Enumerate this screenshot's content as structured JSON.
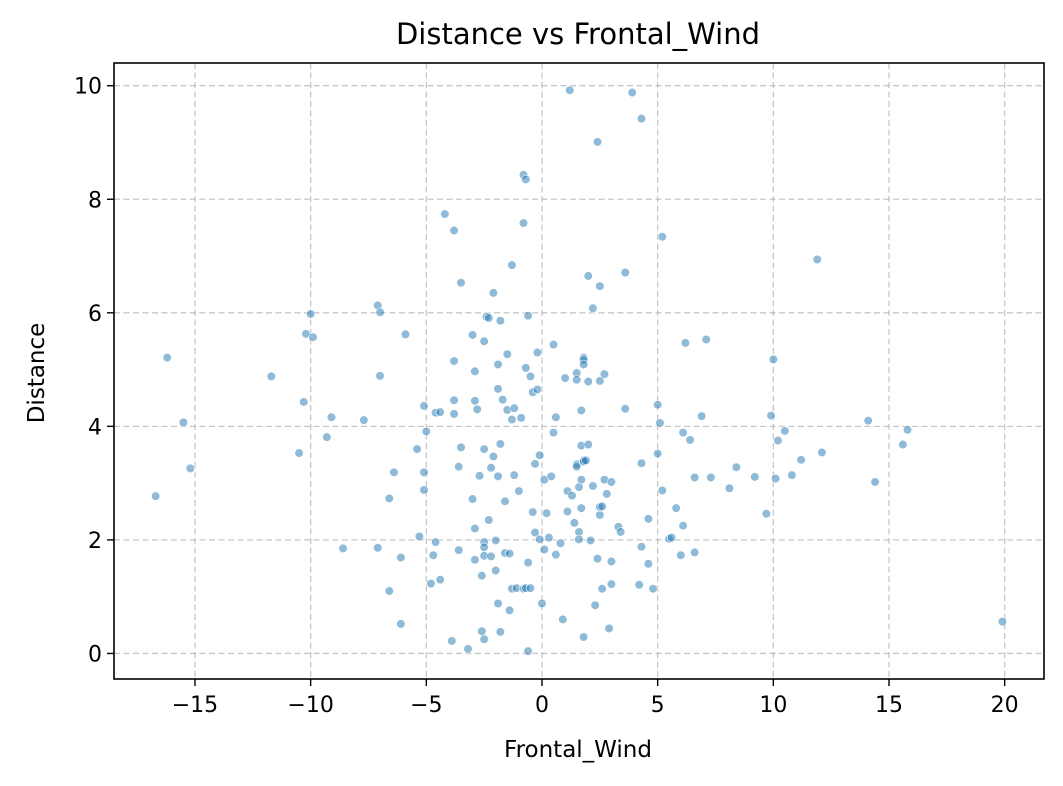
{
  "chart_data": {
    "type": "scatter",
    "title": "Distance vs Frontal_Wind",
    "xlabel": "Frontal_Wind",
    "ylabel": "Distance",
    "xlim": [
      -18.5,
      21.7
    ],
    "ylim": [
      -0.45,
      10.4
    ],
    "xticks": [
      -15,
      -10,
      -5,
      0,
      5,
      10,
      15,
      20
    ],
    "xtick_labels": [
      "−15",
      "−10",
      "−5",
      "0",
      "5",
      "10",
      "15",
      "20"
    ],
    "yticks": [
      0,
      2,
      4,
      6,
      8,
      10
    ],
    "ytick_labels": [
      "0",
      "2",
      "4",
      "6",
      "8",
      "10"
    ],
    "grid": true,
    "marker_color": "#1f77b4",
    "points": [
      [
        -16.7,
        2.77
      ],
      [
        -16.2,
        5.21
      ],
      [
        -15.5,
        4.07
      ],
      [
        -15.2,
        3.26
      ],
      [
        -11.7,
        4.88
      ],
      [
        -10.5,
        3.53
      ],
      [
        -10.3,
        4.43
      ],
      [
        -10.2,
        5.63
      ],
      [
        -10.0,
        5.98
      ],
      [
        -9.9,
        5.57
      ],
      [
        -9.3,
        3.81
      ],
      [
        -9.1,
        4.16
      ],
      [
        -8.6,
        1.85
      ],
      [
        -7.7,
        4.11
      ],
      [
        -7.1,
        6.13
      ],
      [
        -7.0,
        6.01
      ],
      [
        -7.0,
        4.89
      ],
      [
        -7.1,
        1.86
      ],
      [
        -6.6,
        2.73
      ],
      [
        -6.6,
        1.1
      ],
      [
        -6.4,
        3.19
      ],
      [
        -6.1,
        1.69
      ],
      [
        -6.1,
        0.52
      ],
      [
        -5.9,
        5.62
      ],
      [
        -5.4,
        3.6
      ],
      [
        -5.3,
        2.06
      ],
      [
        -5.1,
        4.36
      ],
      [
        -5.0,
        3.91
      ],
      [
        -5.1,
        3.19
      ],
      [
        -5.1,
        2.88
      ],
      [
        -4.8,
        1.23
      ],
      [
        -4.7,
        1.73
      ],
      [
        -4.6,
        4.24
      ],
      [
        -4.6,
        1.96
      ],
      [
        -4.4,
        4.25
      ],
      [
        -4.4,
        1.3
      ],
      [
        -4.2,
        7.74
      ],
      [
        -3.9,
        0.22
      ],
      [
        -3.8,
        7.45
      ],
      [
        -3.8,
        5.15
      ],
      [
        -3.8,
        4.46
      ],
      [
        -3.8,
        4.22
      ],
      [
        -3.6,
        3.29
      ],
      [
        -3.6,
        1.82
      ],
      [
        -3.5,
        6.53
      ],
      [
        -3.5,
        3.63
      ],
      [
        -3.2,
        0.08
      ],
      [
        -3.0,
        5.61
      ],
      [
        -3.0,
        2.72
      ],
      [
        -2.9,
        4.97
      ],
      [
        -2.9,
        4.45
      ],
      [
        -2.9,
        2.2
      ],
      [
        -2.9,
        1.65
      ],
      [
        -2.8,
        4.3
      ],
      [
        -2.7,
        3.13
      ],
      [
        -2.6,
        1.37
      ],
      [
        -2.6,
        0.39
      ],
      [
        -2.5,
        5.5
      ],
      [
        -2.5,
        3.6
      ],
      [
        -2.5,
        1.96
      ],
      [
        -2.5,
        1.87
      ],
      [
        -2.5,
        1.72
      ],
      [
        -2.5,
        0.25
      ],
      [
        -2.4,
        5.93
      ],
      [
        -2.3,
        5.91
      ],
      [
        -2.3,
        2.35
      ],
      [
        -2.2,
        3.27
      ],
      [
        -2.2,
        1.71
      ],
      [
        -2.1,
        6.35
      ],
      [
        -2.1,
        3.47
      ],
      [
        -2.0,
        1.99
      ],
      [
        -2.0,
        1.46
      ],
      [
        -1.9,
        5.09
      ],
      [
        -1.9,
        4.66
      ],
      [
        -1.9,
        3.12
      ],
      [
        -1.9,
        0.88
      ],
      [
        -1.8,
        5.86
      ],
      [
        -1.8,
        3.69
      ],
      [
        -1.8,
        0.38
      ],
      [
        -1.7,
        4.47
      ],
      [
        -1.6,
        2.68
      ],
      [
        -1.6,
        1.77
      ],
      [
        -1.5,
        5.27
      ],
      [
        -1.5,
        4.29
      ],
      [
        -1.4,
        1.76
      ],
      [
        -1.4,
        0.76
      ],
      [
        -1.3,
        6.84
      ],
      [
        -1.3,
        4.12
      ],
      [
        -1.3,
        1.14
      ],
      [
        -1.2,
        4.32
      ],
      [
        -1.2,
        3.14
      ],
      [
        -1.1,
        1.15
      ],
      [
        -1.0,
        2.86
      ],
      [
        -0.9,
        4.15
      ],
      [
        -0.8,
        8.43
      ],
      [
        -0.8,
        7.58
      ],
      [
        -0.8,
        1.14
      ],
      [
        -0.7,
        8.35
      ],
      [
        -0.7,
        5.03
      ],
      [
        -0.7,
        1.15
      ],
      [
        -0.6,
        5.95
      ],
      [
        -0.6,
        1.6
      ],
      [
        -0.6,
        0.04
      ],
      [
        -0.5,
        4.88
      ],
      [
        -0.5,
        1.15
      ],
      [
        -0.4,
        4.6
      ],
      [
        -0.4,
        2.49
      ],
      [
        -0.3,
        3.34
      ],
      [
        -0.3,
        2.13
      ],
      [
        -0.2,
        5.3
      ],
      [
        -0.2,
        4.65
      ],
      [
        -0.1,
        3.49
      ],
      [
        -0.1,
        2.01
      ],
      [
        0.0,
        0.88
      ],
      [
        0.1,
        1.83
      ],
      [
        0.1,
        3.06
      ],
      [
        0.2,
        2.47
      ],
      [
        0.3,
        2.04
      ],
      [
        0.4,
        3.12
      ],
      [
        0.5,
        5.44
      ],
      [
        0.5,
        3.89
      ],
      [
        0.6,
        4.16
      ],
      [
        0.6,
        1.74
      ],
      [
        0.8,
        1.94
      ],
      [
        0.9,
        0.6
      ],
      [
        1.0,
        4.85
      ],
      [
        1.1,
        2.5
      ],
      [
        1.1,
        2.86
      ],
      [
        1.2,
        9.92
      ],
      [
        1.3,
        2.78
      ],
      [
        1.4,
        2.3
      ],
      [
        1.5,
        4.94
      ],
      [
        1.5,
        3.33
      ],
      [
        1.5,
        3.29
      ],
      [
        1.5,
        4.82
      ],
      [
        1.6,
        2.93
      ],
      [
        1.6,
        2.14
      ],
      [
        1.6,
        2.01
      ],
      [
        1.7,
        4.28
      ],
      [
        1.7,
        3.06
      ],
      [
        1.7,
        2.56
      ],
      [
        1.7,
        3.66
      ],
      [
        1.8,
        5.21
      ],
      [
        1.8,
        5.17
      ],
      [
        1.8,
        5.09
      ],
      [
        1.8,
        3.4
      ],
      [
        1.8,
        3.38
      ],
      [
        1.8,
        0.29
      ],
      [
        1.9,
        3.4
      ],
      [
        2.0,
        6.65
      ],
      [
        2.0,
        3.68
      ],
      [
        2.0,
        4.79
      ],
      [
        2.1,
        1.99
      ],
      [
        2.2,
        6.08
      ],
      [
        2.2,
        2.95
      ],
      [
        2.3,
        0.85
      ],
      [
        2.4,
        9.01
      ],
      [
        2.4,
        1.67
      ],
      [
        2.5,
        6.47
      ],
      [
        2.5,
        4.8
      ],
      [
        2.5,
        2.44
      ],
      [
        2.5,
        2.58
      ],
      [
        2.6,
        2.59
      ],
      [
        2.6,
        1.14
      ],
      [
        2.7,
        4.92
      ],
      [
        2.7,
        3.06
      ],
      [
        2.8,
        2.81
      ],
      [
        2.9,
        0.44
      ],
      [
        3.0,
        3.02
      ],
      [
        3.0,
        1.62
      ],
      [
        3.0,
        1.22
      ],
      [
        3.3,
        2.23
      ],
      [
        3.4,
        2.14
      ],
      [
        3.6,
        6.71
      ],
      [
        3.6,
        4.31
      ],
      [
        3.9,
        9.88
      ],
      [
        4.2,
        1.21
      ],
      [
        4.3,
        9.42
      ],
      [
        4.3,
        3.35
      ],
      [
        4.3,
        1.88
      ],
      [
        4.6,
        1.58
      ],
      [
        4.6,
        2.37
      ],
      [
        4.8,
        1.14
      ],
      [
        5.0,
        4.38
      ],
      [
        5.0,
        3.52
      ],
      [
        5.1,
        4.06
      ],
      [
        5.2,
        7.34
      ],
      [
        5.2,
        2.87
      ],
      [
        5.5,
        2.02
      ],
      [
        5.6,
        2.04
      ],
      [
        5.8,
        2.56
      ],
      [
        6.0,
        1.73
      ],
      [
        6.1,
        3.89
      ],
      [
        6.1,
        2.25
      ],
      [
        6.2,
        5.47
      ],
      [
        6.4,
        3.76
      ],
      [
        6.6,
        3.1
      ],
      [
        6.6,
        1.78
      ],
      [
        6.9,
        4.18
      ],
      [
        7.1,
        5.53
      ],
      [
        7.3,
        3.1
      ],
      [
        8.1,
        2.91
      ],
      [
        8.4,
        3.28
      ],
      [
        9.2,
        3.11
      ],
      [
        9.7,
        2.46
      ],
      [
        9.9,
        4.19
      ],
      [
        10.0,
        5.18
      ],
      [
        10.1,
        3.08
      ],
      [
        10.2,
        3.75
      ],
      [
        10.5,
        3.92
      ],
      [
        10.8,
        3.14
      ],
      [
        11.2,
        3.41
      ],
      [
        11.9,
        6.94
      ],
      [
        12.1,
        3.54
      ],
      [
        14.1,
        4.1
      ],
      [
        14.4,
        3.02
      ],
      [
        15.6,
        3.68
      ],
      [
        15.8,
        3.94
      ],
      [
        19.9,
        0.56
      ]
    ]
  }
}
